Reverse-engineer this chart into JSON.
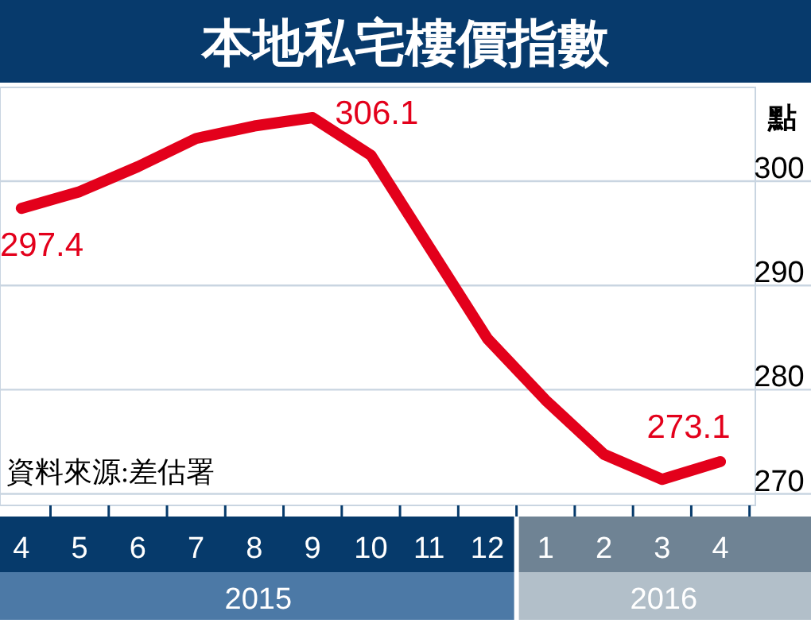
{
  "chart_data": {
    "type": "line",
    "title": "本地私宅樓價指數",
    "ylabel": "點",
    "x": [
      "2015-04",
      "2015-05",
      "2015-06",
      "2015-07",
      "2015-08",
      "2015-09",
      "2015-10",
      "2015-11",
      "2015-12",
      "2016-01",
      "2016-02",
      "2016-03",
      "2016-04"
    ],
    "series": [
      {
        "color": "#e3001b",
        "values": [
          297.4,
          299.0,
          301.4,
          304.1,
          305.3,
          306.1,
          302.5,
          293.7,
          284.9,
          279.0,
          273.8,
          271.4,
          273.1
        ]
      }
    ],
    "xlim": [
      "2015-03-20",
      "2016-04-19"
    ],
    "xticks": [
      {
        "value": "2015-04",
        "label": "4"
      },
      {
        "value": "2015-05",
        "label": "5"
      },
      {
        "value": "2015-06",
        "label": "6"
      },
      {
        "value": "2015-07",
        "label": "7"
      },
      {
        "value": "2015-08",
        "label": "8"
      },
      {
        "value": "2015-09",
        "label": "9"
      },
      {
        "value": "2015-10",
        "label": "10"
      },
      {
        "value": "2015-11",
        "label": "11"
      },
      {
        "value": "2015-12",
        "label": "12"
      },
      {
        "value": "2016-01",
        "label": "1"
      },
      {
        "value": "2016-02",
        "label": "2"
      },
      {
        "value": "2016-03",
        "label": "3"
      },
      {
        "value": "2016-04",
        "label": "4"
      }
    ],
    "ylim": [
      268.9,
      309
    ],
    "yticks": [
      270,
      280,
      290,
      300
    ],
    "grid": "y",
    "marker": "none",
    "line_style": "solid",
    "annotations": [
      {
        "text": "297.4",
        "x": "2015-04",
        "y": 297.4
      },
      {
        "text": "306.1",
        "x": "2015-09",
        "y": 306.1
      },
      {
        "text": "273.1",
        "x": "2016-04",
        "y": 273.1
      },
      "資料來源:差估署",
      "2015",
      "2016"
    ]
  }
}
